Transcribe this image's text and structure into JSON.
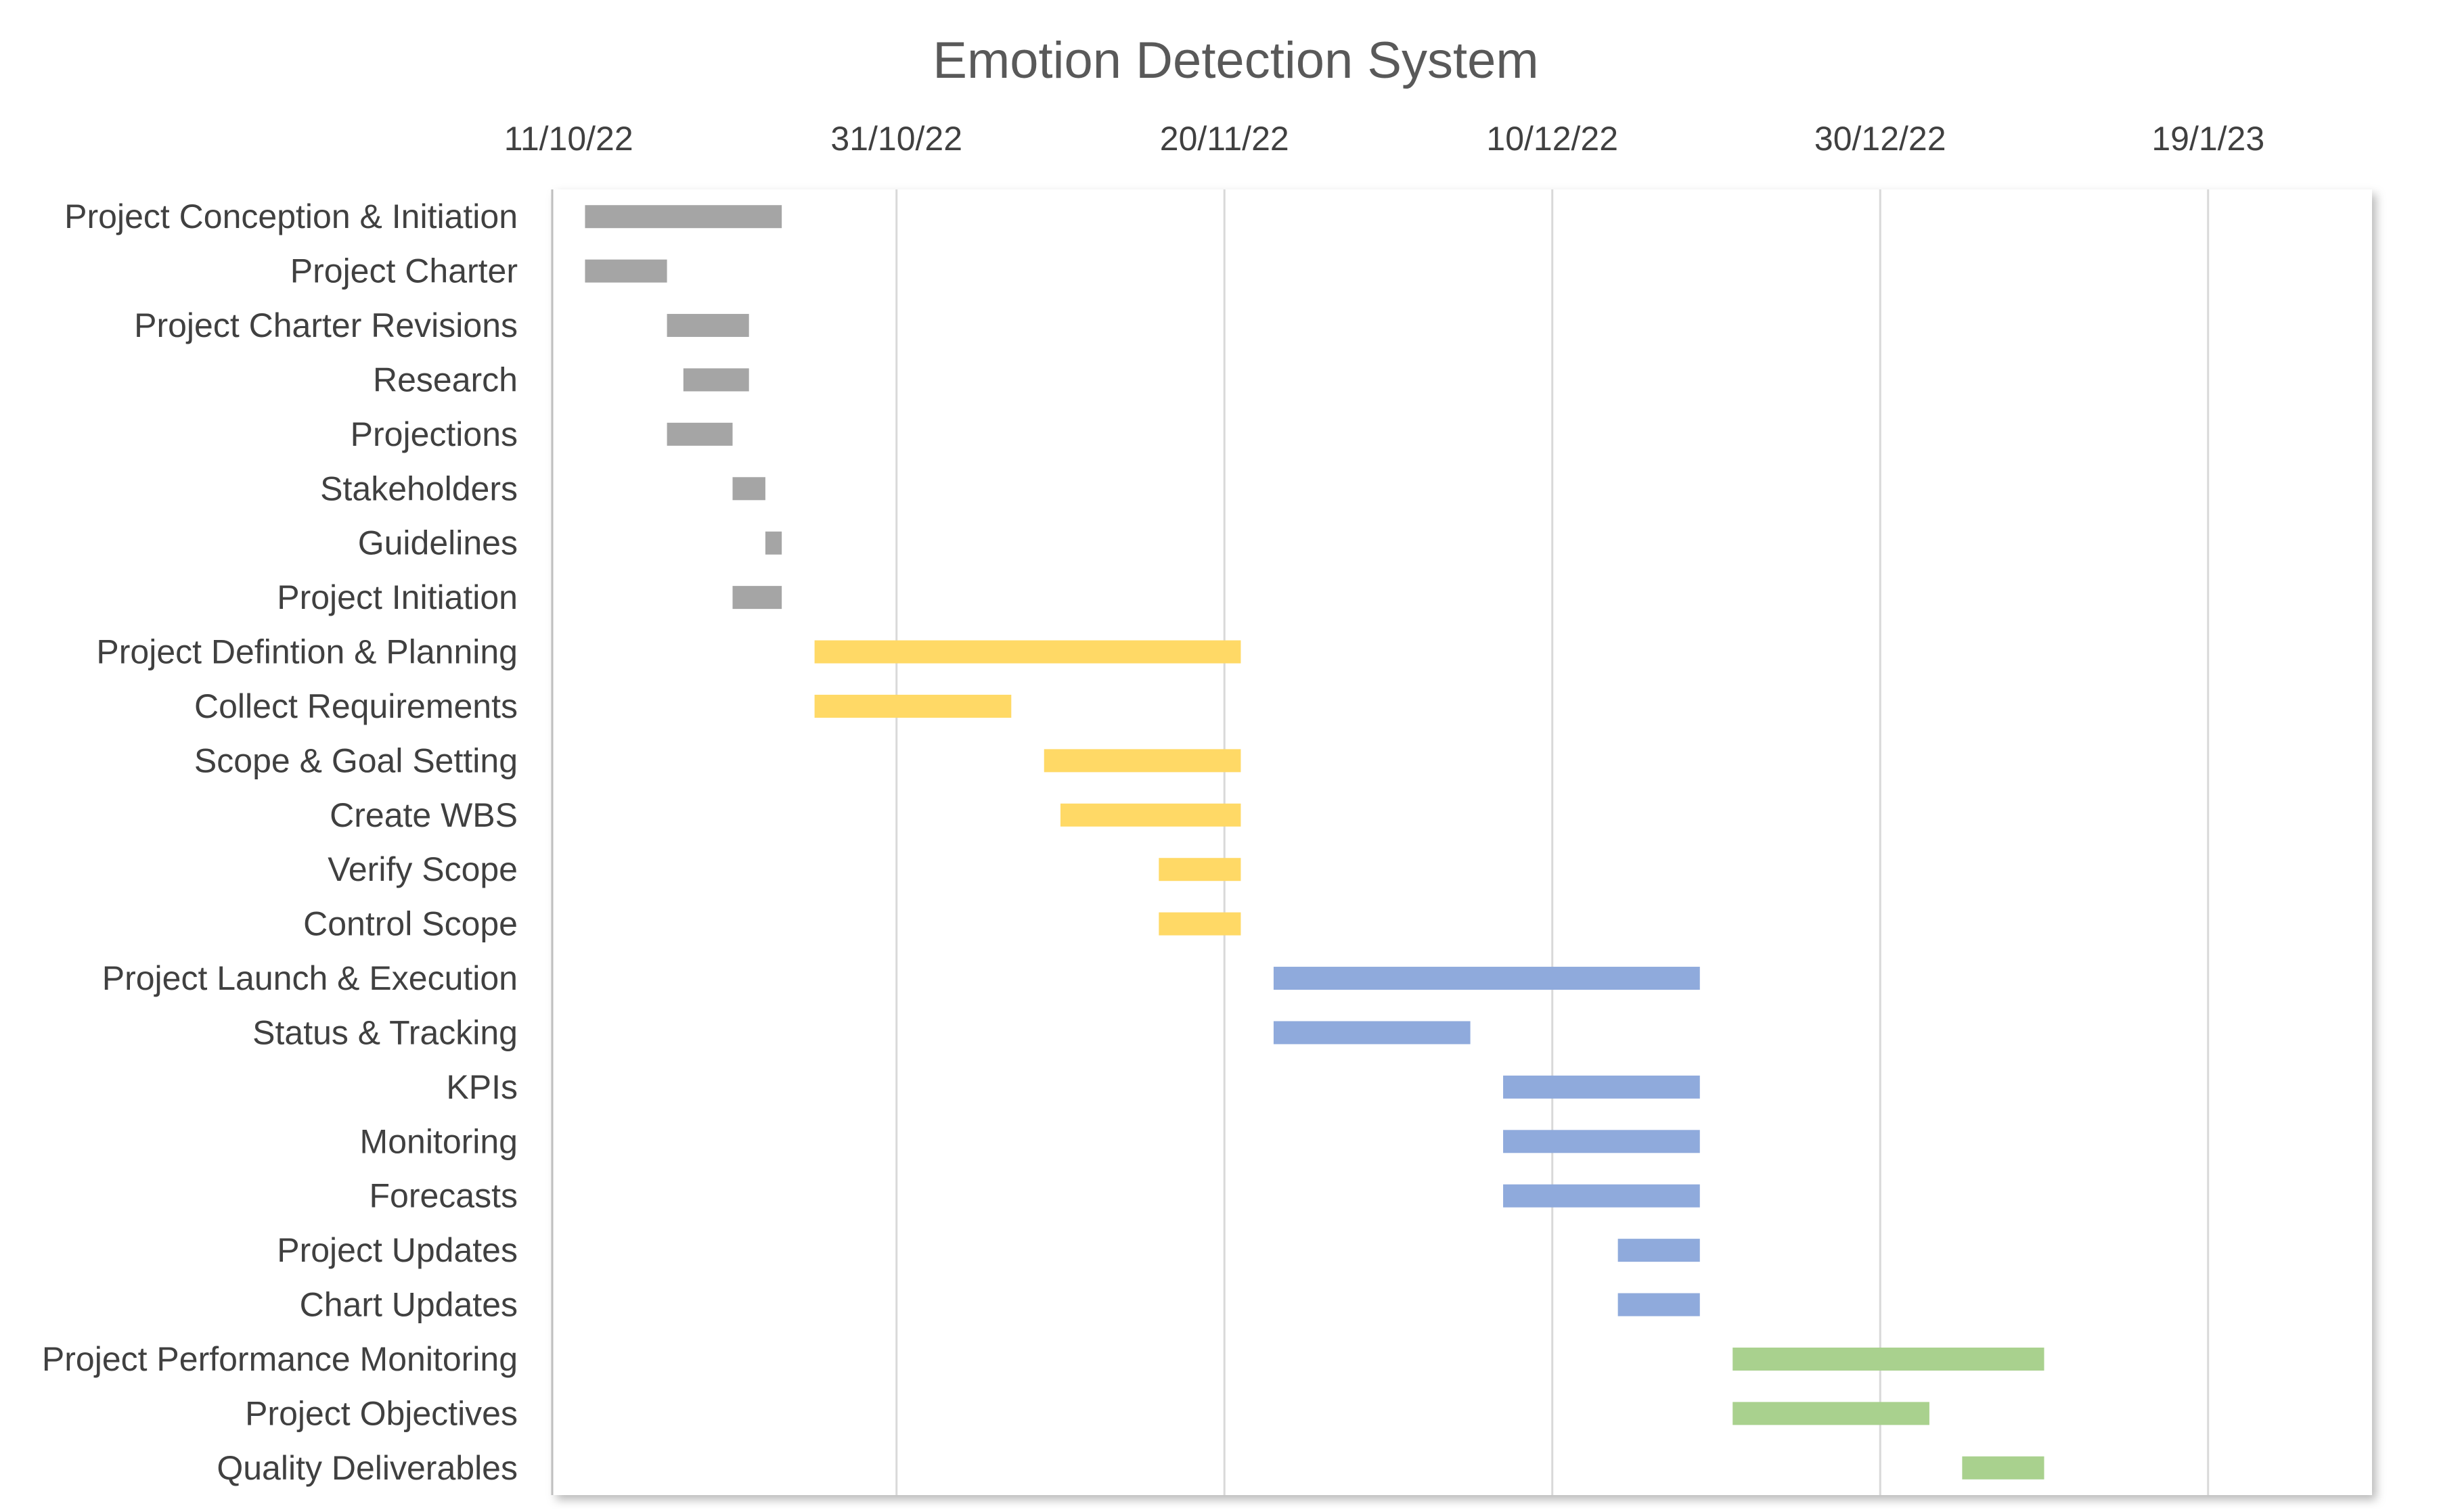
{
  "chart_data": {
    "type": "bar",
    "orientation": "horizontal",
    "subtype": "gantt",
    "title": "Emotion Detection System",
    "x_axis": {
      "position": "top",
      "type": "date",
      "range": [
        "2022-10-10",
        "2023-01-29"
      ],
      "ticks": [
        {
          "date": "2022-10-11",
          "label": "11/10/22"
        },
        {
          "date": "2022-10-31",
          "label": "31/10/22"
        },
        {
          "date": "2022-11-20",
          "label": "20/11/22"
        },
        {
          "date": "2022-12-10",
          "label": "10/12/22"
        },
        {
          "date": "2022-12-30",
          "label": "30/12/22"
        },
        {
          "date": "2023-01-19",
          "label": "19/1/23"
        }
      ],
      "gridlines": true
    },
    "legend": "none",
    "colors": {
      "conception": "#A5A5A5",
      "planning": "#FFD966",
      "execution": "#8FAADC",
      "monitoring": "#A9D18E",
      "gridline": "#D9D9D9",
      "axis": "#BFBFBF"
    },
    "tasks": [
      {
        "name": "Project Conception & Initiation",
        "start": "2022-10-12",
        "end": "2022-10-24",
        "phase": "conception"
      },
      {
        "name": "Project Charter",
        "start": "2022-10-12",
        "end": "2022-10-17",
        "phase": "conception"
      },
      {
        "name": "Project Charter Revisions",
        "start": "2022-10-17",
        "end": "2022-10-22",
        "phase": "conception"
      },
      {
        "name": "Research",
        "start": "2022-10-18",
        "end": "2022-10-22",
        "phase": "conception"
      },
      {
        "name": "Projections",
        "start": "2022-10-17",
        "end": "2022-10-21",
        "phase": "conception"
      },
      {
        "name": "Stakeholders",
        "start": "2022-10-21",
        "end": "2022-10-23",
        "phase": "conception"
      },
      {
        "name": "Guidelines",
        "start": "2022-10-23",
        "end": "2022-10-24",
        "phase": "conception"
      },
      {
        "name": "Project Initiation",
        "start": "2022-10-21",
        "end": "2022-10-24",
        "phase": "conception"
      },
      {
        "name": "Project Defintion & Planning",
        "start": "2022-10-26",
        "end": "2022-11-21",
        "phase": "planning"
      },
      {
        "name": "Collect Requirements",
        "start": "2022-10-26",
        "end": "2022-11-07",
        "phase": "planning"
      },
      {
        "name": "Scope & Goal Setting",
        "start": "2022-11-09",
        "end": "2022-11-21",
        "phase": "planning"
      },
      {
        "name": "Create WBS",
        "start": "2022-11-10",
        "end": "2022-11-21",
        "phase": "planning"
      },
      {
        "name": "Verify Scope",
        "start": "2022-11-16",
        "end": "2022-11-21",
        "phase": "planning"
      },
      {
        "name": "Control Scope",
        "start": "2022-11-16",
        "end": "2022-11-21",
        "phase": "planning"
      },
      {
        "name": "Project Launch & Execution",
        "start": "2022-11-23",
        "end": "2022-12-19",
        "phase": "execution"
      },
      {
        "name": "Status & Tracking",
        "start": "2022-11-23",
        "end": "2022-12-05",
        "phase": "execution"
      },
      {
        "name": "KPIs",
        "start": "2022-12-07",
        "end": "2022-12-19",
        "phase": "execution"
      },
      {
        "name": "Monitoring",
        "start": "2022-12-07",
        "end": "2022-12-19",
        "phase": "execution"
      },
      {
        "name": "Forecasts",
        "start": "2022-12-07",
        "end": "2022-12-19",
        "phase": "execution"
      },
      {
        "name": "Project Updates",
        "start": "2022-12-14",
        "end": "2022-12-19",
        "phase": "execution"
      },
      {
        "name": "Chart Updates",
        "start": "2022-12-14",
        "end": "2022-12-19",
        "phase": "execution"
      },
      {
        "name": "Project Performance Monitoring",
        "start": "2022-12-21",
        "end": "2023-01-09",
        "phase": "monitoring"
      },
      {
        "name": "Project Objectives",
        "start": "2022-12-21",
        "end": "2023-01-02",
        "phase": "monitoring"
      },
      {
        "name": "Quality Deliverables",
        "start": "2023-01-04",
        "end": "2023-01-09",
        "phase": "monitoring"
      }
    ]
  }
}
